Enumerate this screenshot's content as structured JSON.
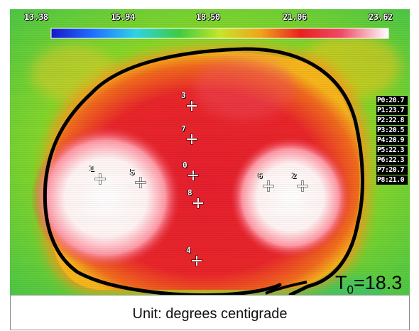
{
  "thermal_image": {
    "scale_ticks": [
      "13.38",
      "15.94",
      "18.50",
      "21.06",
      "23.62"
    ],
    "palette": [
      "#1a17c8",
      "#1a7cff",
      "#2fd7e8",
      "#3fcd43",
      "#bfe82a",
      "#f2b11c",
      "#ef4b1e",
      "#e51e2a",
      "#ff8a8a",
      "#ffffff"
    ],
    "background_color": "#5ecc2a",
    "measurement_points": [
      {
        "id": "0",
        "label": "0"
      },
      {
        "id": "1",
        "label": "1"
      },
      {
        "id": "2",
        "label": "2"
      },
      {
        "id": "3",
        "label": "3"
      },
      {
        "id": "4",
        "label": "4"
      },
      {
        "id": "5",
        "label": "5"
      },
      {
        "id": "6",
        "label": "6"
      },
      {
        "id": "7",
        "label": "7"
      },
      {
        "id": "8",
        "label": "8"
      }
    ],
    "readouts": [
      "P0:20.7",
      "P1:23.7",
      "P2:22.8",
      "P3:20.5",
      "P4:20.9",
      "P5:22.3",
      "P6:22.3",
      "P7:20.7",
      "P8:21.0"
    ],
    "t0": {
      "symbol": "T",
      "subscript": "0",
      "value": "=18.3"
    }
  },
  "caption": {
    "text": "Unit: degrees centigrade"
  }
}
